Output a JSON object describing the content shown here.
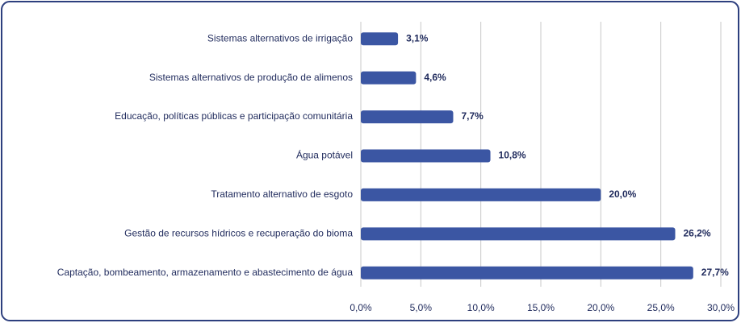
{
  "chart_data": {
    "type": "bar",
    "orientation": "horizontal",
    "categories": [
      "Sistemas alternativos de irrigação",
      "Sistemas alternativos de produção de alimenos",
      "Educação, políticas públicas e participação comunitária",
      "Água potável",
      "Tratamento alternativo de esgoto",
      "Gestão de recursos hídricos e recuperação do bioma",
      "Captação, bombeamento, armazenamento e abastecimento de água"
    ],
    "values": [
      3.1,
      4.6,
      7.7,
      10.8,
      20.0,
      26.2,
      27.7
    ],
    "value_labels": [
      "3,1%",
      "4,6%",
      "7,7%",
      "10,8%",
      "20,0%",
      "26,2%",
      "27,7%"
    ],
    "color": "#3b56a3",
    "xlim": [
      0,
      30
    ],
    "xticks": [
      {
        "value": 0,
        "label": "0,0%"
      },
      {
        "value": 5,
        "label": "5,0%"
      },
      {
        "value": 10,
        "label": "10,0%"
      },
      {
        "value": 15,
        "label": "15,0%"
      },
      {
        "value": 20,
        "label": "20,0%"
      },
      {
        "value": 25,
        "label": "25,0%"
      },
      {
        "value": 30,
        "label": "30,0%"
      }
    ],
    "grid": true
  }
}
